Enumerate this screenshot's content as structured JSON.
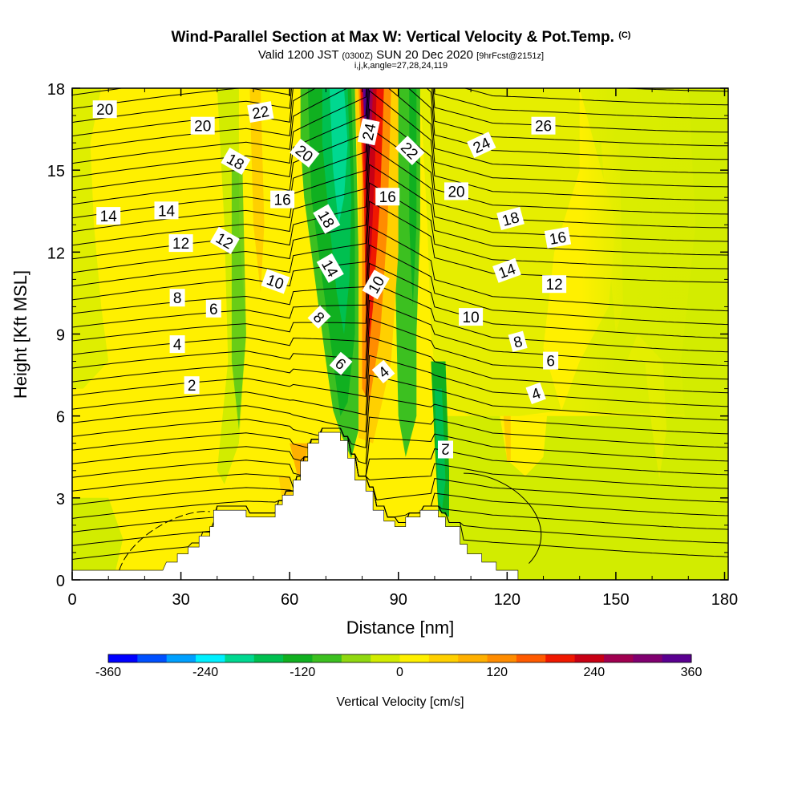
{
  "header": {
    "title": "Wind-Parallel Section at Max W: Vertical Velocity & Pot.Temp.",
    "title_mark": "(C)",
    "valid_prefix": "Valid 1200 JST",
    "valid_utc": "(0300Z)",
    "valid_date": "SUN 20 Dec 2020",
    "forecast": "[9hrFcst@2151z]",
    "params": "i,j,k,angle=27,28,24,119"
  },
  "chart_data": {
    "type": "heatmap",
    "xlabel": "Distance [nm]",
    "ylabel": "Height [Kft MSL]",
    "xlim": [
      0,
      181
    ],
    "ylim": [
      0,
      18
    ],
    "x_ticks": [
      0,
      30,
      60,
      90,
      120,
      150,
      180
    ],
    "y_ticks": [
      0,
      3,
      6,
      9,
      12,
      15,
      18
    ],
    "x_tick_labels": [
      "0",
      "30",
      "60",
      "90",
      "120",
      "150",
      "180"
    ],
    "y_tick_labels": [
      "0",
      "3",
      "6",
      "9",
      "12",
      "15",
      "18"
    ],
    "colorbar": {
      "label": "Vertical Velocity [cm/s]",
      "range": [
        -360,
        360
      ],
      "tick_labels": [
        "-360",
        "-240",
        "-120",
        "0",
        "120",
        "240",
        "360"
      ],
      "colors": [
        "#0000ff",
        "#0050ff",
        "#00a0ff",
        "#00f0ff",
        "#00d890",
        "#00c050",
        "#10b020",
        "#3cc020",
        "#90d810",
        "#d2ec00",
        "#fff000",
        "#ffd000",
        "#ffb000",
        "#ff8c00",
        "#ff5a00",
        "#f01800",
        "#c80014",
        "#a00050",
        "#800070",
        "#5a0090"
      ]
    },
    "terrain_profile": [
      [
        0,
        0.35
      ],
      [
        25,
        0.35
      ],
      [
        26,
        0.65
      ],
      [
        29,
        0.65
      ],
      [
        29,
        0.95
      ],
      [
        32,
        0.95
      ],
      [
        32,
        1.2
      ],
      [
        35,
        1.2
      ],
      [
        35,
        1.6
      ],
      [
        38,
        1.6
      ],
      [
        38,
        1.95
      ],
      [
        39,
        1.95
      ],
      [
        39,
        2.55
      ],
      [
        48,
        2.55
      ],
      [
        48,
        2.3
      ],
      [
        56,
        2.3
      ],
      [
        56,
        2.75
      ],
      [
        58,
        2.75
      ],
      [
        58,
        3.1
      ],
      [
        61,
        3.1
      ],
      [
        61,
        3.65
      ],
      [
        63,
        3.65
      ],
      [
        63,
        4.35
      ],
      [
        65,
        4.35
      ],
      [
        65,
        5.0
      ],
      [
        68,
        5.0
      ],
      [
        68,
        5.4
      ],
      [
        74,
        5.4
      ],
      [
        74,
        5.1
      ],
      [
        76,
        5.1
      ],
      [
        76,
        4.45
      ],
      [
        78,
        4.45
      ],
      [
        78,
        3.65
      ],
      [
        81,
        3.65
      ],
      [
        81,
        3.25
      ],
      [
        83,
        3.25
      ],
      [
        83,
        2.55
      ],
      [
        86,
        2.55
      ],
      [
        86,
        2.15
      ],
      [
        89,
        2.15
      ],
      [
        89,
        1.95
      ],
      [
        92,
        1.95
      ],
      [
        92,
        2.3
      ],
      [
        96,
        2.3
      ],
      [
        96,
        2.55
      ],
      [
        101,
        2.55
      ],
      [
        101,
        2.3
      ],
      [
        103,
        2.3
      ],
      [
        103,
        1.95
      ],
      [
        107,
        1.95
      ],
      [
        107,
        1.3
      ],
      [
        109,
        1.3
      ],
      [
        109,
        0.95
      ],
      [
        113,
        0.95
      ],
      [
        113,
        0.65
      ],
      [
        117,
        0.65
      ],
      [
        117,
        0.35
      ],
      [
        123,
        0.35
      ],
      [
        123,
        0.0
      ],
      [
        181,
        0.0
      ]
    ],
    "theta_contour_labels": [
      {
        "text": "20",
        "x": 9,
        "y": 17.2,
        "angle": 0
      },
      {
        "text": "20",
        "x": 36,
        "y": 16.6,
        "angle": 0
      },
      {
        "text": "22",
        "x": 52,
        "y": 17.1,
        "angle": -10
      },
      {
        "text": "18",
        "x": 45,
        "y": 15.3,
        "angle": 30
      },
      {
        "text": "20",
        "x": 64,
        "y": 15.6,
        "angle": 38
      },
      {
        "text": "24",
        "x": 82,
        "y": 16.4,
        "angle": -78
      },
      {
        "text": "22",
        "x": 93,
        "y": 15.7,
        "angle": 45
      },
      {
        "text": "24",
        "x": 113,
        "y": 15.9,
        "angle": -25
      },
      {
        "text": "26",
        "x": 130,
        "y": 16.6,
        "angle": 0
      },
      {
        "text": "16",
        "x": 58,
        "y": 13.9,
        "angle": 0
      },
      {
        "text": "16",
        "x": 87,
        "y": 14.0,
        "angle": 0
      },
      {
        "text": "20",
        "x": 106,
        "y": 14.2,
        "angle": 0
      },
      {
        "text": "14",
        "x": 10,
        "y": 13.3,
        "angle": 0
      },
      {
        "text": "14",
        "x": 26,
        "y": 13.5,
        "angle": 0
      },
      {
        "text": "18",
        "x": 70,
        "y": 13.2,
        "angle": 60
      },
      {
        "text": "18",
        "x": 121,
        "y": 13.2,
        "angle": -15
      },
      {
        "text": "12",
        "x": 30,
        "y": 12.3,
        "angle": 0
      },
      {
        "text": "12",
        "x": 42,
        "y": 12.4,
        "angle": 30
      },
      {
        "text": "16",
        "x": 134,
        "y": 12.5,
        "angle": -10
      },
      {
        "text": "14",
        "x": 71,
        "y": 11.4,
        "angle": 60
      },
      {
        "text": "14",
        "x": 120,
        "y": 11.3,
        "angle": -20
      },
      {
        "text": "10",
        "x": 56,
        "y": 10.9,
        "angle": 20
      },
      {
        "text": "10",
        "x": 84,
        "y": 10.8,
        "angle": -60
      },
      {
        "text": "12",
        "x": 133,
        "y": 10.8,
        "angle": 0
      },
      {
        "text": "8",
        "x": 29,
        "y": 10.3,
        "angle": 0
      },
      {
        "text": "6",
        "x": 39,
        "y": 9.9,
        "angle": 0
      },
      {
        "text": "8",
        "x": 68,
        "y": 9.6,
        "angle": 45
      },
      {
        "text": "10",
        "x": 110,
        "y": 9.6,
        "angle": 0
      },
      {
        "text": "4",
        "x": 29,
        "y": 8.6,
        "angle": 0
      },
      {
        "text": "8",
        "x": 123,
        "y": 8.7,
        "angle": -15
      },
      {
        "text": "6",
        "x": 74,
        "y": 7.9,
        "angle": 40
      },
      {
        "text": "6",
        "x": 132,
        "y": 8.0,
        "angle": 0
      },
      {
        "text": "4",
        "x": 86,
        "y": 7.6,
        "angle": -40
      },
      {
        "text": "2",
        "x": 33,
        "y": 7.1,
        "angle": 0
      },
      {
        "text": "4",
        "x": 128,
        "y": 6.8,
        "angle": -20
      },
      {
        "text": "2",
        "x": 103,
        "y": 4.8,
        "angle": 180
      }
    ]
  }
}
